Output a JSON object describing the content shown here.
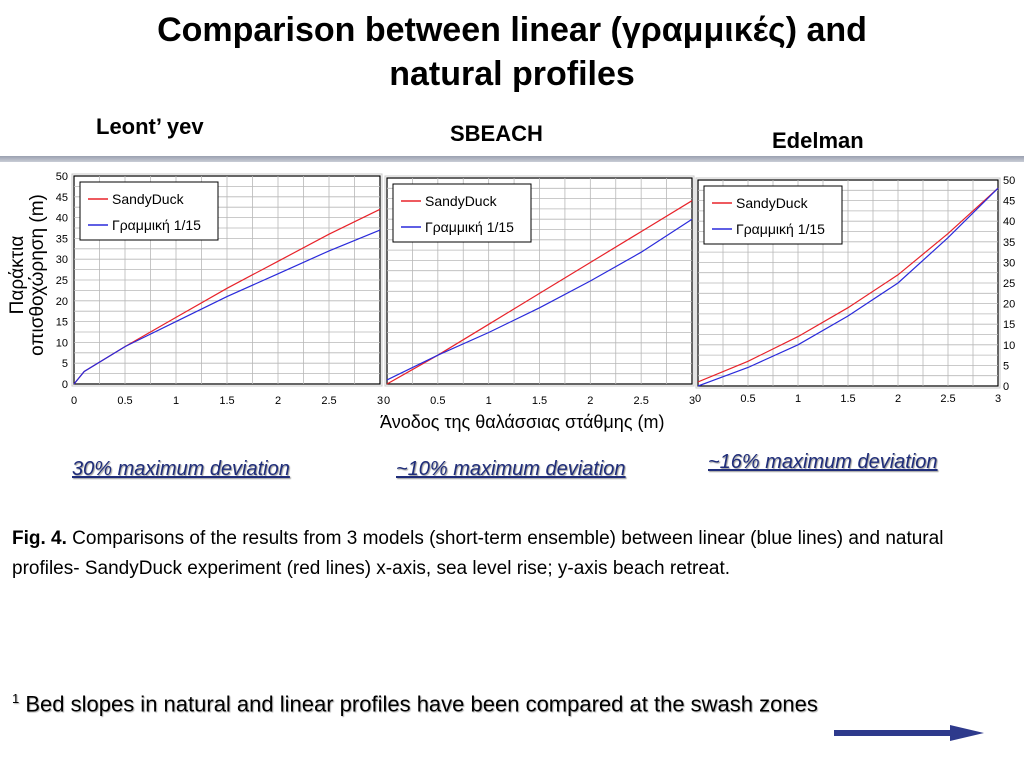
{
  "slide": {
    "title_line1": "Comparison between linear (γραμμικές) and",
    "title_line2": "natural profiles",
    "model_labels": [
      "Leont’ yev",
      "SBEACH",
      "Edelman"
    ],
    "ylabel_line1": "Παράκτια",
    "ylabel_line2": "οπισθοχώρηση (m)",
    "xlabel": "Άνοδος της θαλάσσιας στάθμης (m)",
    "deviations": [
      "30% maximum deviation",
      "~10% maximum deviation",
      "~16% maximum deviation"
    ],
    "caption_bold": "Fig. 4.",
    "caption_text": " Comparisons of the results from 3 models (short-term ensemble) between linear (blue lines) and natural profiles- SandyDuck experiment (red lines) x-axis, sea level rise; y-axis beach retreat.",
    "footnote_sup": "1",
    "footnote_text": " Bed slopes in natural and linear profiles have been compared at the swash zones",
    "colors": {
      "red": "#e8232a",
      "blue": "#2a2adb",
      "arrow": "#2e3a8c",
      "deviation_text": "#1f2d7a"
    }
  },
  "chart_data": [
    {
      "type": "line",
      "panel": "Leont’ yev",
      "x_ticks": [
        "0",
        "0.5",
        "1",
        "1.5",
        "2",
        "2.5",
        "3"
      ],
      "y_ticks": [
        "0",
        "5",
        "10",
        "15",
        "20",
        "25",
        "30",
        "35",
        "40",
        "45",
        "50"
      ],
      "xlim": [
        0,
        3
      ],
      "ylim": [
        0,
        50
      ],
      "grid": true,
      "legend": "top-left",
      "y_axis_side": "left",
      "series": [
        {
          "name": "SandyDuck",
          "color": "#e8232a",
          "x": [
            0,
            0.1,
            0.5,
            1,
            1.5,
            2,
            2.5,
            3
          ],
          "y": [
            0,
            3,
            9,
            16,
            23,
            29.5,
            36,
            42
          ]
        },
        {
          "name": "Γραμμική 1/15",
          "color": "#2a2adb",
          "x": [
            0,
            0.1,
            0.5,
            1,
            1.5,
            2,
            2.5,
            3
          ],
          "y": [
            0,
            3,
            9,
            15,
            21,
            26.5,
            32,
            37
          ]
        }
      ]
    },
    {
      "type": "line",
      "panel": "SBEACH",
      "x_ticks": [
        "0",
        "0.5",
        "1",
        "1.5",
        "2",
        "2.5",
        "3"
      ],
      "y_ticks": [],
      "xlim": [
        0,
        3
      ],
      "ylim": [
        0,
        50
      ],
      "grid": true,
      "legend": "top-left",
      "y_axis_side": "none",
      "series": [
        {
          "name": "SandyDuck",
          "color": "#e8232a",
          "x": [
            0,
            0.5,
            1,
            1.5,
            2,
            2.5,
            3
          ],
          "y": [
            0,
            7,
            14.5,
            22,
            29.5,
            37,
            44.5
          ]
        },
        {
          "name": "Γραμμική 1/15",
          "color": "#2a2adb",
          "x": [
            0,
            0.5,
            1,
            1.5,
            2,
            2.5,
            3
          ],
          "y": [
            1,
            7,
            12.5,
            18.5,
            25,
            32,
            40
          ]
        }
      ]
    },
    {
      "type": "line",
      "panel": "Edelman",
      "x_ticks": [
        "0",
        "0.5",
        "1",
        "1.5",
        "2",
        "2.5",
        "3"
      ],
      "y_ticks": [
        "0",
        "5",
        "10",
        "15",
        "20",
        "25",
        "30",
        "35",
        "40",
        "45",
        "50"
      ],
      "xlim": [
        0,
        3
      ],
      "ylim": [
        0,
        50
      ],
      "grid": true,
      "legend": "top-left",
      "y_axis_side": "right",
      "series": [
        {
          "name": "SandyDuck",
          "color": "#e8232a",
          "x": [
            0,
            0.5,
            1,
            1.5,
            2,
            2.5,
            3
          ],
          "y": [
            1,
            6,
            12,
            19,
            27,
            37,
            48
          ]
        },
        {
          "name": "Γραμμική 1/15",
          "color": "#2a2adb",
          "x": [
            0,
            0.5,
            1,
            1.5,
            2,
            2.5,
            3
          ],
          "y": [
            0,
            4.5,
            10,
            17,
            25,
            36,
            48
          ]
        }
      ]
    }
  ]
}
